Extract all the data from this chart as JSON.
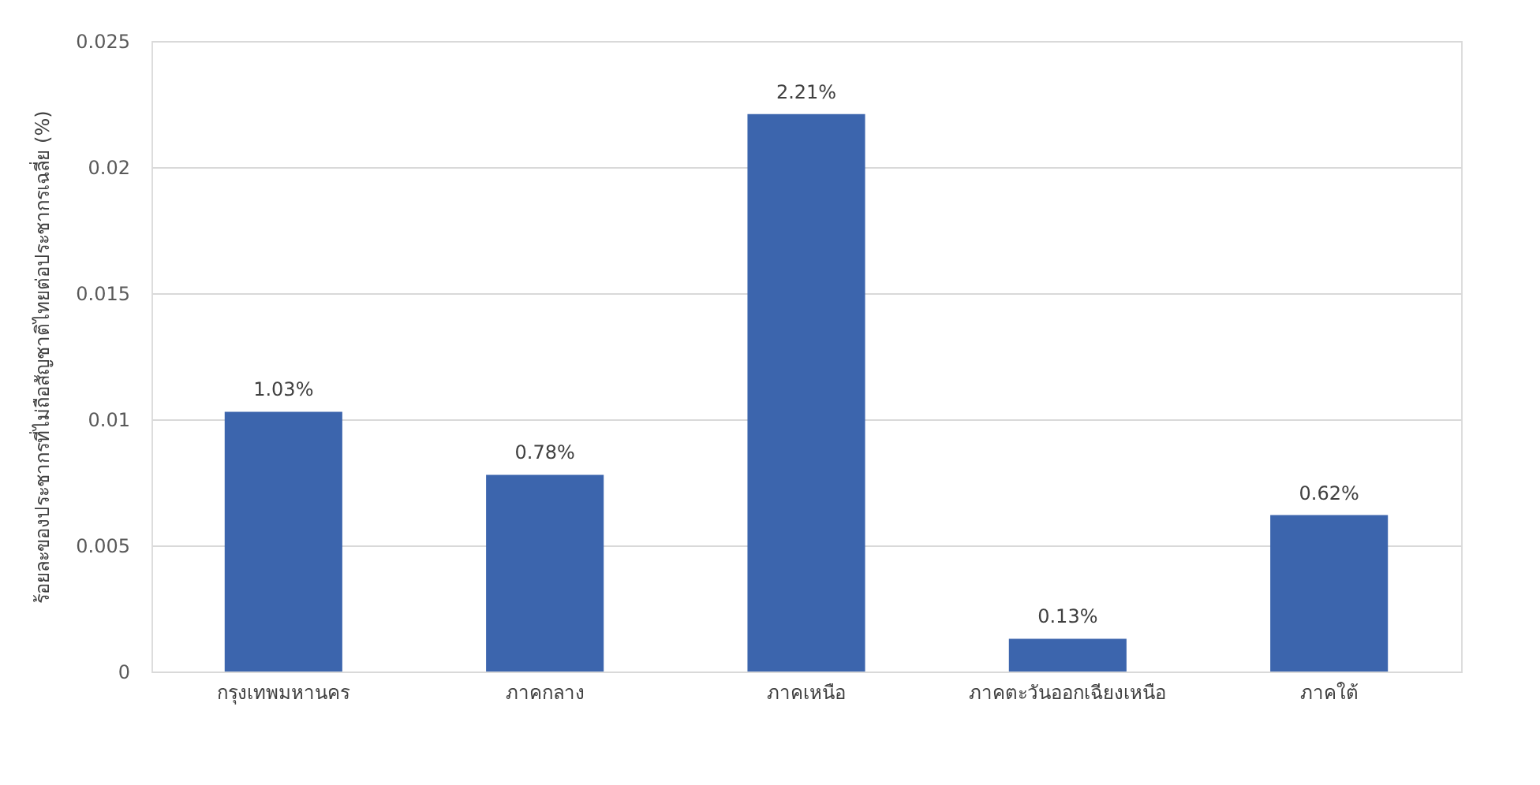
{
  "chart_data": {
    "type": "bar",
    "ylabel": "ร้อยละของประชากรที่ไม่ถือสัญชาติไทยต่อประชากรเฉลี่ย (%)",
    "categories": [
      "กรุงเทพมหานคร",
      "ภาคกลาง",
      "ภาคเหนือ",
      "ภาคตะวันออกเฉียงเหนือ",
      "ภาคใต้"
    ],
    "values": [
      0.0103,
      0.0078,
      0.0221,
      0.0013,
      0.0062
    ],
    "value_labels": [
      "1.03%",
      "0.78%",
      "2.21%",
      "0.13%",
      "0.62%"
    ],
    "color": "#3c65ad",
    "ylim": [
      0,
      0.025
    ],
    "yticks": [
      0,
      0.005,
      0.01,
      0.015,
      0.02,
      0.025
    ],
    "grid": "y"
  }
}
